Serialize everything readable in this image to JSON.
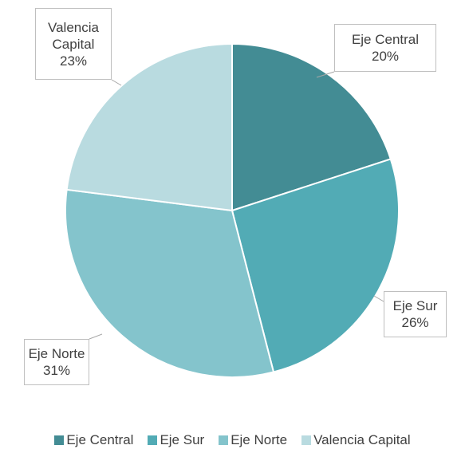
{
  "chart_data": {
    "type": "pie",
    "categories": [
      "Eje Central",
      "Eje Sur",
      "Eje Norte",
      "Valencia Capital"
    ],
    "values": [
      20,
      26,
      31,
      23
    ],
    "value_labels": [
      "20%",
      "26%",
      "31%",
      "23%"
    ],
    "colors": [
      "#438c94",
      "#52abb5",
      "#84c4cc",
      "#b9dbe0"
    ],
    "legend": "bottom"
  }
}
